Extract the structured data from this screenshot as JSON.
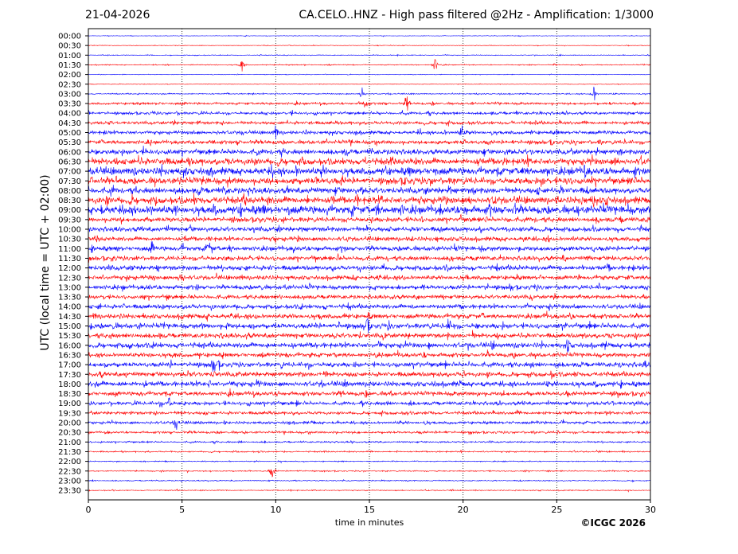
{
  "header": {
    "date": "21-04-2026",
    "title": "CA.CELO..HNZ - High pass filtered @2Hz - Amplification: 1/3000"
  },
  "footer": {
    "copyright": "©ICGC 2026"
  },
  "chart_data": {
    "type": "line",
    "subtype": "helicorder",
    "xlabel": "time in minutes",
    "ylabel": "UTC (local time = UTC + 02:00)",
    "xlim": [
      0,
      30
    ],
    "xticks": [
      0,
      5,
      10,
      15,
      20,
      25,
      30
    ],
    "vertical_gridlines": [
      5,
      10,
      15,
      20,
      25
    ],
    "grid": "vertical dotted",
    "colors": {
      "even_rows": "#0000ff",
      "odd_rows": "#ff0000"
    },
    "rows": [
      "00:00",
      "00:30",
      "01:00",
      "01:30",
      "02:00",
      "02:30",
      "03:00",
      "03:30",
      "04:00",
      "04:30",
      "05:00",
      "05:30",
      "06:00",
      "06:30",
      "07:00",
      "07:30",
      "08:00",
      "08:30",
      "09:00",
      "09:30",
      "10:00",
      "10:30",
      "11:00",
      "11:30",
      "12:00",
      "12:30",
      "13:00",
      "13:30",
      "14:00",
      "14:30",
      "15:00",
      "15:30",
      "16:00",
      "16:30",
      "17:00",
      "17:30",
      "18:00",
      "18:30",
      "19:00",
      "19:30",
      "20:00",
      "20:30",
      "21:00",
      "21:30",
      "22:00",
      "22:30",
      "23:00",
      "23:30"
    ],
    "relative_noise_amplitude": [
      0.3,
      0.3,
      0.4,
      0.5,
      0.3,
      0.3,
      0.6,
      1.2,
      1.4,
      1.6,
      1.8,
      2.0,
      2.6,
      3.4,
      3.8,
      3.4,
      3.0,
      3.6,
      4.2,
      2.4,
      2.4,
      2.2,
      2.4,
      2.2,
      2.4,
      2.2,
      2.2,
      2.0,
      2.2,
      2.4,
      2.6,
      2.4,
      2.6,
      2.2,
      2.4,
      2.4,
      2.6,
      2.2,
      1.8,
      1.6,
      1.4,
      1.2,
      0.8,
      0.7,
      0.5,
      0.6,
      0.5,
      0.5
    ],
    "notable_events_minutes": [
      {
        "row": "01:30",
        "t": [
          8.2,
          18.5
        ]
      },
      {
        "row": "03:00",
        "t": [
          14.6,
          27.0
        ]
      },
      {
        "row": "03:30",
        "t": [
          14.8,
          17.0
        ]
      },
      {
        "row": "05:00",
        "t": [
          10.0,
          19.9
        ]
      },
      {
        "row": "07:00",
        "t": [
          26.5
        ]
      },
      {
        "row": "08:30",
        "t": [
          27.0
        ]
      },
      {
        "row": "11:00",
        "t": [
          3.4,
          6.5
        ]
      },
      {
        "row": "12:30",
        "t": [
          5.0
        ]
      },
      {
        "row": "15:00",
        "t": [
          14.9,
          19.2
        ]
      },
      {
        "row": "16:00",
        "t": [
          25.6
        ]
      },
      {
        "row": "17:00",
        "t": [
          6.7
        ]
      },
      {
        "row": "19:00",
        "t": [
          4.3
        ]
      },
      {
        "row": "20:00",
        "t": [
          4.7
        ]
      },
      {
        "row": "22:30",
        "t": [
          9.8
        ]
      }
    ]
  }
}
